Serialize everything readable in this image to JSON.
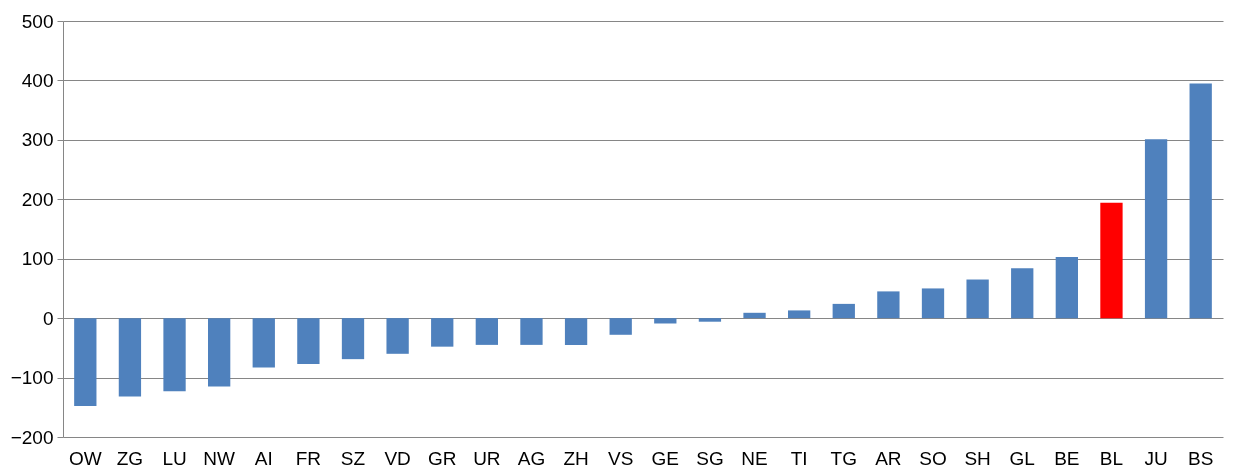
{
  "chart_data": {
    "type": "bar",
    "categories": [
      "OW",
      "ZG",
      "LU",
      "NW",
      "AI",
      "FR",
      "SZ",
      "VD",
      "GR",
      "UR",
      "AG",
      "ZH",
      "VS",
      "GE",
      "SG",
      "NE",
      "TI",
      "TG",
      "AR",
      "SO",
      "SH",
      "GL",
      "BE",
      "BL",
      "JU",
      "BS"
    ],
    "values": [
      -148,
      -132,
      -123,
      -115,
      -83,
      -77,
      -69,
      -60,
      -48,
      -45,
      -45,
      -45,
      -28,
      -9,
      -6,
      9,
      13,
      24,
      45,
      50,
      65,
      84,
      103,
      194,
      301,
      395
    ],
    "colors": [
      "#4f81bd",
      "#4f81bd",
      "#4f81bd",
      "#4f81bd",
      "#4f81bd",
      "#4f81bd",
      "#4f81bd",
      "#4f81bd",
      "#4f81bd",
      "#4f81bd",
      "#4f81bd",
      "#4f81bd",
      "#4f81bd",
      "#4f81bd",
      "#4f81bd",
      "#4f81bd",
      "#4f81bd",
      "#4f81bd",
      "#4f81bd",
      "#4f81bd",
      "#4f81bd",
      "#4f81bd",
      "#4f81bd",
      "#ff0000",
      "#4f81bd",
      "#4f81bd"
    ],
    "ylim": [
      -200,
      500
    ],
    "yticks": [
      -200,
      -100,
      0,
      100,
      200,
      300,
      400,
      500
    ],
    "grid": "y"
  }
}
